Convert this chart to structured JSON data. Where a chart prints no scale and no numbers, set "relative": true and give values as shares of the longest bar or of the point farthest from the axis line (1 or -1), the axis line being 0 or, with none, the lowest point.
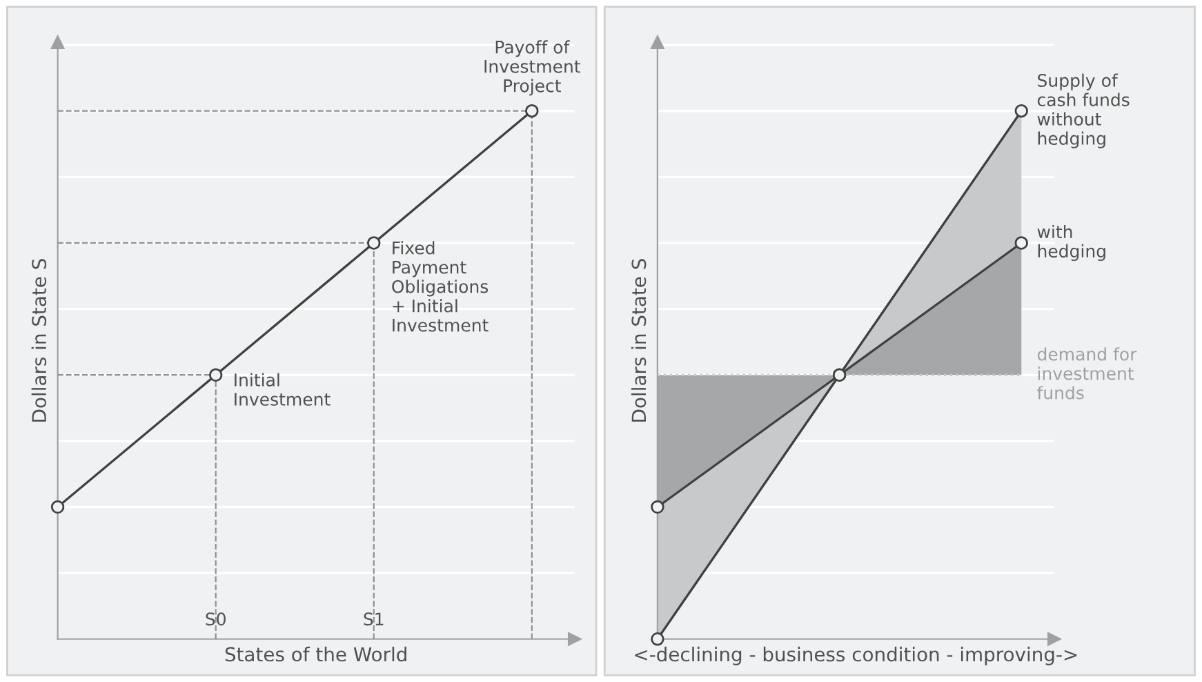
{
  "chart_data": [
    {
      "type": "line",
      "relative": true,
      "categories": [
        null,
        "S0",
        "S1",
        null
      ],
      "xlabel": "States of the World",
      "ylabel": "Dollars in State S",
      "grid": true,
      "marker": "circle",
      "line_style": "solid",
      "legend": false,
      "series": [
        {
          "color": "#404040",
          "values": [
            0.25,
            0.5,
            0.75,
            1
          ]
        }
      ],
      "annotations": [
        {
          "text": "Payoff of\nInvestment\nProject",
          "y": 1
        },
        {
          "text": "Fixed\nPayment\nObligations\n+ Initial\nInvestment",
          "x": "S1",
          "y": 0.75
        },
        {
          "text": "Initial\nInvestment",
          "x": "S0",
          "y": 0.5
        }
      ]
    },
    {
      "type": "line",
      "relative": true,
      "categories": [
        null,
        null,
        null
      ],
      "xlabel": "<-declining - business condition - improving->",
      "ylabel": "Dollars in State S",
      "grid": "y",
      "marker": "circle",
      "line_style": "solid",
      "legend": false,
      "series": [
        {
          "name": "Supply of\ncash funds\nwithout\nhedging",
          "color": "#404040",
          "values": [
            0,
            0.5,
            1
          ]
        },
        {
          "name": "with\nhedging",
          "color": "#404040",
          "values": [
            0.25,
            0.5,
            0.75
          ]
        }
      ],
      "ref_lines": [
        {
          "axis": "y",
          "value": 0.5,
          "label": "demand for\ninvestment\nfunds",
          "color": "#c8c8c8",
          "line_style": "dotted"
        }
      ]
    }
  ]
}
